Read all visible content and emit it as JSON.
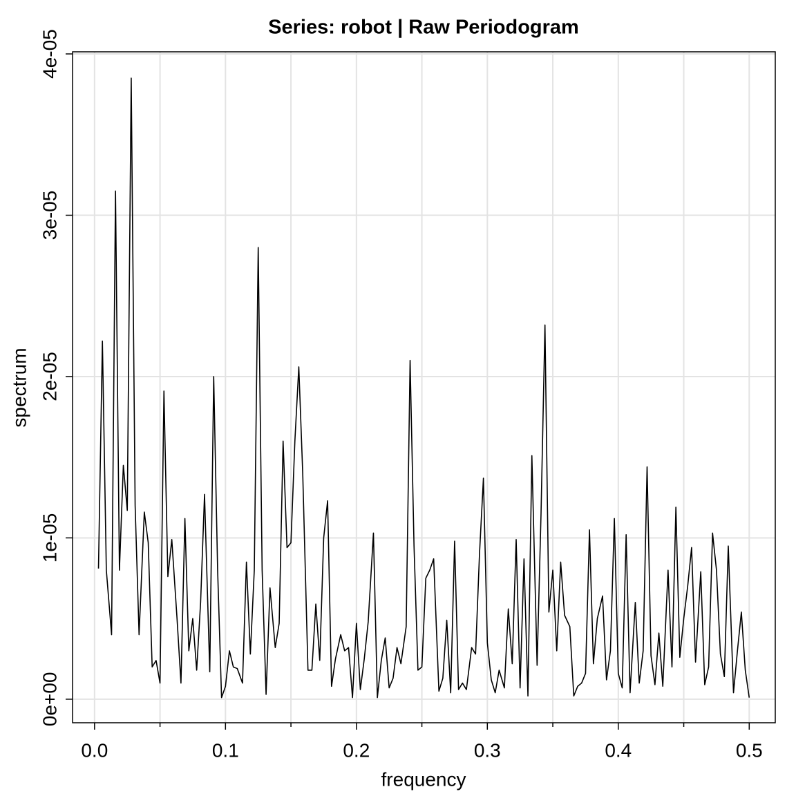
{
  "chart_data": {
    "type": "line",
    "title": "Series: robot  |  Raw Periodogram",
    "xlabel": "frequency",
    "ylabel": "spectrum",
    "grid": true,
    "color": "#000000",
    "xlim": [
      -0.0168,
      0.5199
    ],
    "ylim": [
      -1.46e-06,
      4.013e-05
    ],
    "xticks": [
      {
        "value": 0,
        "label": "0.0"
      },
      0.1,
      0.2,
      0.3,
      0.4,
      0.5
    ],
    "xminorticks": [
      0.05,
      0.15,
      0.25,
      0.35,
      0.45
    ],
    "yticks": [
      {
        "value": 0,
        "label": "0e+00"
      },
      {
        "value": 1e-05,
        "label": "1e-05"
      },
      {
        "value": 2e-05,
        "label": "2e-05"
      },
      {
        "value": 3e-05,
        "label": "3e-05"
      },
      {
        "value": 4e-05,
        "label": "4e-05"
      }
    ],
    "x": [
      0.003,
      0.006,
      0.009,
      0.013,
      0.016,
      0.019,
      0.022,
      0.025,
      0.028,
      0.031,
      0.034,
      0.038,
      0.041,
      0.044,
      0.047,
      0.05,
      0.053,
      0.056,
      0.059,
      0.063,
      0.066,
      0.069,
      0.072,
      0.075,
      0.078,
      0.081,
      0.084,
      0.088,
      0.091,
      0.094,
      0.097,
      0.1,
      0.103,
      0.106,
      0.109,
      0.113,
      0.116,
      0.119,
      0.122,
      0.125,
      0.128,
      0.131,
      0.134,
      0.138,
      0.141,
      0.144,
      0.147,
      0.15,
      0.153,
      0.156,
      0.159,
      0.163,
      0.166,
      0.169,
      0.172,
      0.175,
      0.178,
      0.181,
      0.184,
      0.188,
      0.191,
      0.194,
      0.197,
      0.2,
      0.203,
      0.206,
      0.209,
      0.213,
      0.216,
      0.219,
      0.222,
      0.225,
      0.228,
      0.231,
      0.234,
      0.238,
      0.241,
      0.244,
      0.247,
      0.25,
      0.253,
      0.256,
      0.259,
      0.263,
      0.266,
      0.269,
      0.272,
      0.275,
      0.278,
      0.281,
      0.284,
      0.288,
      0.291,
      0.294,
      0.297,
      0.3,
      0.303,
      0.306,
      0.309,
      0.313,
      0.316,
      0.319,
      0.322,
      0.325,
      0.328,
      0.331,
      0.334,
      0.338,
      0.341,
      0.344,
      0.347,
      0.35,
      0.353,
      0.356,
      0.359,
      0.363,
      0.366,
      0.369,
      0.372,
      0.375,
      0.378,
      0.381,
      0.384,
      0.388,
      0.391,
      0.394,
      0.397,
      0.4,
      0.403,
      0.406,
      0.409,
      0.413,
      0.416,
      0.419,
      0.422,
      0.425,
      0.428,
      0.431,
      0.434,
      0.438,
      0.441,
      0.444,
      0.447,
      0.45,
      0.453,
      0.456,
      0.459,
      0.463,
      0.466,
      0.469,
      0.472,
      0.475,
      0.478,
      0.481,
      0.484,
      0.488,
      0.491,
      0.494,
      0.497,
      0.5
    ],
    "values": [
      8.1e-06,
      2.22e-05,
      8e-06,
      4e-06,
      3.15e-05,
      8e-06,
      1.45e-05,
      1.17e-05,
      3.85e-05,
      1.2e-05,
      4e-06,
      1.16e-05,
      9.7e-06,
      2e-06,
      2.4e-06,
      1e-06,
      1.91e-05,
      7.6e-06,
      9.9e-06,
      5e-06,
      1e-06,
      1.12e-05,
      3e-06,
      5e-06,
      1.8e-06,
      6e-06,
      1.27e-05,
      1.7e-06,
      2e-05,
      8e-06,
      1e-07,
      8e-07,
      3e-06,
      2e-06,
      1.9e-06,
      1e-06,
      8.5e-06,
      2.8e-06,
      8e-06,
      2.8e-05,
      8e-06,
      3e-07,
      6.9e-06,
      3.2e-06,
      4.7e-06,
      1.6e-05,
      9.4e-06,
      9.7e-06,
      1.6e-05,
      2.06e-05,
      1.4e-05,
      1.8e-06,
      1.8e-06,
      5.9e-06,
      2.4e-06,
      1e-05,
      1.23e-05,
      8e-07,
      2.5e-06,
      4e-06,
      3e-06,
      3.2e-06,
      1e-07,
      4.7e-06,
      6e-07,
      2.5e-06,
      4.8e-06,
      1.03e-05,
      1e-07,
      2.4e-06,
      3.8e-06,
      7e-07,
      1.3e-06,
      3.2e-06,
      2.2e-06,
      4.5e-06,
      2.1e-05,
      9.5e-06,
      1.8e-06,
      2e-06,
      7.5e-06,
      8e-06,
      8.7e-06,
      5e-07,
      1.3e-06,
      4.9e-06,
      4e-07,
      9.8e-06,
      6e-07,
      1e-06,
      6e-07,
      3.2e-06,
      2.8e-06,
      9e-06,
      1.37e-05,
      3.5e-06,
      1.2e-06,
      4e-07,
      1.8e-06,
      7e-07,
      5.6e-06,
      2.2e-06,
      9.9e-06,
      7e-07,
      8.7e-06,
      2e-07,
      1.51e-05,
      2.1e-06,
      1.15e-05,
      2.32e-05,
      5.4e-06,
      8e-06,
      3e-06,
      8.5e-06,
      5.2e-06,
      4.5e-06,
      2e-07,
      8e-07,
      1e-06,
      1.6e-06,
      1.05e-05,
      2.2e-06,
      5e-06,
      6.4e-06,
      1.2e-06,
      3e-06,
      1.12e-05,
      1.6e-06,
      7e-07,
      1.02e-05,
      4e-07,
      6e-06,
      1e-06,
      3e-06,
      1.44e-05,
      2.7e-06,
      9e-07,
      4.1e-06,
      8e-07,
      8e-06,
      2e-06,
      1.19e-05,
      2.6e-06,
      5e-06,
      7e-06,
      9.4e-06,
      2.3e-06,
      7.9e-06,
      9e-07,
      2e-06,
      1.03e-05,
      8e-06,
      2.8e-06,
      1.4e-06,
      9.5e-06,
      4e-07,
      3e-06,
      5.4e-06,
      1.8e-06,
      1e-07
    ]
  }
}
